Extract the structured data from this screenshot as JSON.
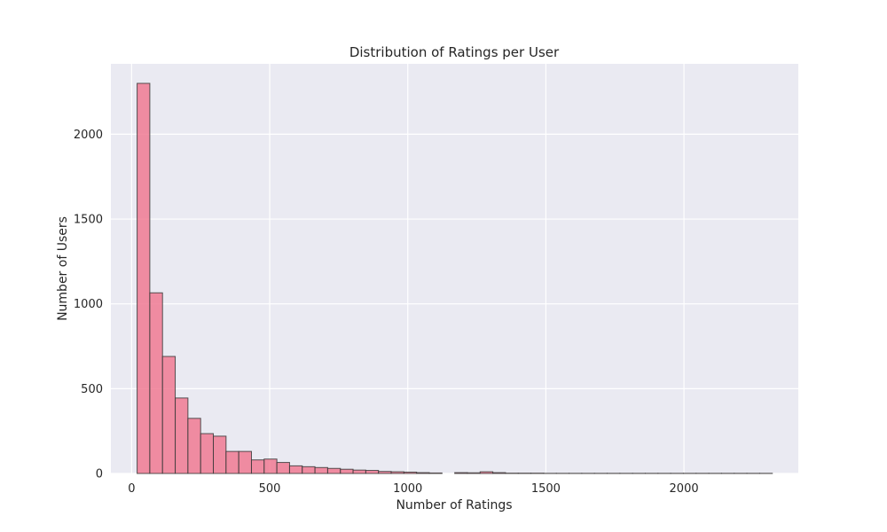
{
  "chart_data": {
    "type": "bar",
    "title": "Distribution of Ratings per User",
    "xlabel": "Number of Ratings",
    "ylabel": "Number of Users",
    "xlim": [
      -75,
      2414
    ],
    "ylim": [
      0,
      2415
    ],
    "x_ticks": [
      0,
      500,
      1000,
      1500,
      2000
    ],
    "y_ticks": [
      0,
      500,
      1000,
      1500,
      2000
    ],
    "grid": true,
    "bin_start": 20,
    "bin_width": 46,
    "values": [
      2300,
      1065,
      690,
      445,
      325,
      235,
      220,
      130,
      130,
      80,
      85,
      65,
      45,
      40,
      35,
      30,
      25,
      20,
      18,
      12,
      10,
      8,
      5,
      3,
      0,
      5,
      4,
      10,
      5,
      2,
      2,
      2,
      1,
      1,
      1,
      1,
      1,
      1,
      1,
      1,
      1,
      1,
      1,
      1,
      1,
      1,
      1,
      1,
      1,
      1
    ],
    "colors": {
      "bar_fill": "#f0768f",
      "bar_edge": "#3a3a3a",
      "plot_background": "#eaeaf2",
      "grid": "#ffffff"
    }
  }
}
